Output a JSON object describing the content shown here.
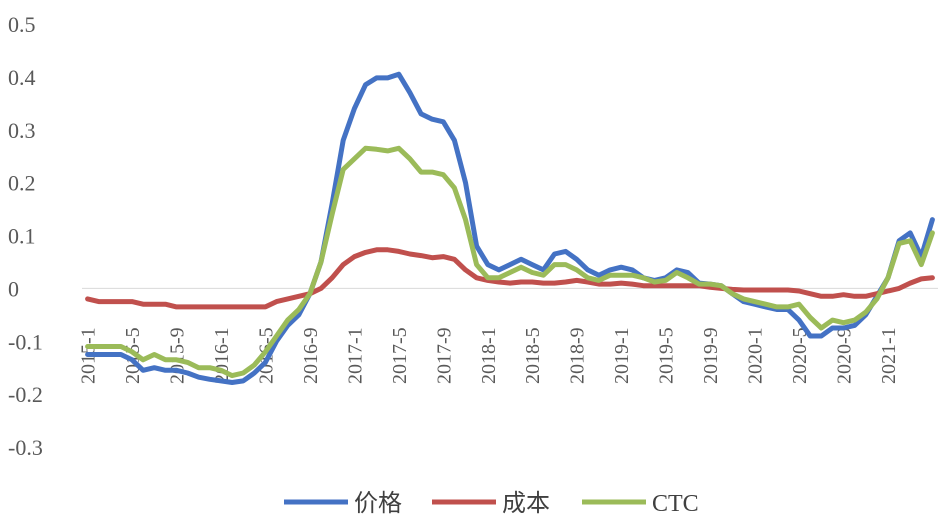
{
  "chart_data": {
    "type": "line",
    "title": "",
    "xlabel": "",
    "ylabel": "",
    "ylim": [
      -0.3,
      0.5
    ],
    "y_ticks": [
      "0.5",
      "0.4",
      "0.3",
      "0.2",
      "0.1",
      "0",
      "-0.1",
      "-0.2",
      "-0.3"
    ],
    "y_tick_values": [
      0.5,
      0.4,
      0.3,
      0.2,
      0.1,
      0,
      -0.1,
      -0.2,
      -0.3
    ],
    "grid": false,
    "legend_position": "bottom",
    "x_tick_labels": [
      "2015-1",
      "2015-5",
      "2015-9",
      "2016-1",
      "2016-5",
      "2016-9",
      "2017-1",
      "2017-5",
      "2017-9",
      "2018-1",
      "2018-5",
      "2018-9",
      "2019-1",
      "2019-5",
      "2019-9",
      "2020-1",
      "2020-5",
      "2020-9",
      "2021-1"
    ],
    "x": [
      "2015-1",
      "2015-2",
      "2015-3",
      "2015-4",
      "2015-5",
      "2015-6",
      "2015-7",
      "2015-8",
      "2015-9",
      "2015-10",
      "2015-11",
      "2015-12",
      "2016-1",
      "2016-2",
      "2016-3",
      "2016-4",
      "2016-5",
      "2016-6",
      "2016-7",
      "2016-8",
      "2016-9",
      "2016-10",
      "2016-11",
      "2016-12",
      "2017-1",
      "2017-2",
      "2017-3",
      "2017-4",
      "2017-5",
      "2017-6",
      "2017-7",
      "2017-8",
      "2017-9",
      "2017-10",
      "2017-11",
      "2017-12",
      "2018-1",
      "2018-2",
      "2018-3",
      "2018-4",
      "2018-5",
      "2018-6",
      "2018-7",
      "2018-8",
      "2018-9",
      "2018-10",
      "2018-11",
      "2018-12",
      "2019-1",
      "2019-2",
      "2019-3",
      "2019-4",
      "2019-5",
      "2019-6",
      "2019-7",
      "2019-8",
      "2019-9",
      "2019-10",
      "2019-11",
      "2019-12",
      "2020-1",
      "2020-2",
      "2020-3",
      "2020-4",
      "2020-5",
      "2020-6",
      "2020-7",
      "2020-8",
      "2020-9",
      "2020-10",
      "2020-11",
      "2020-12",
      "2021-1",
      "2021-2",
      "2021-3",
      "2021-4",
      "2021-5"
    ],
    "series": [
      {
        "name": "价格",
        "color": "#4472C4",
        "values": [
          -0.125,
          -0.125,
          -0.125,
          -0.125,
          -0.135,
          -0.155,
          -0.15,
          -0.155,
          -0.155,
          -0.16,
          -0.168,
          -0.172,
          -0.175,
          -0.178,
          -0.175,
          -0.16,
          -0.14,
          -0.1,
          -0.07,
          -0.05,
          -0.01,
          0.05,
          0.16,
          0.28,
          0.34,
          0.385,
          0.398,
          0.398,
          0.405,
          0.37,
          0.33,
          0.32,
          0.315,
          0.28,
          0.2,
          0.08,
          0.045,
          0.035,
          0.045,
          0.055,
          0.045,
          0.035,
          0.065,
          0.07,
          0.055,
          0.035,
          0.025,
          0.035,
          0.04,
          0.035,
          0.02,
          0.015,
          0.02,
          0.035,
          0.03,
          0.01,
          0.008,
          0.005,
          -0.01,
          -0.025,
          -0.03,
          -0.035,
          -0.04,
          -0.04,
          -0.06,
          -0.09,
          -0.09,
          -0.075,
          -0.075,
          -0.07,
          -0.05,
          -0.015,
          0.02,
          0.09,
          0.105,
          0.06,
          0.13
        ]
      },
      {
        "name": "成本",
        "color": "#C0504D",
        "values": [
          -0.02,
          -0.025,
          -0.025,
          -0.025,
          -0.025,
          -0.03,
          -0.03,
          -0.03,
          -0.035,
          -0.035,
          -0.035,
          -0.035,
          -0.035,
          -0.035,
          -0.035,
          -0.035,
          -0.035,
          -0.025,
          -0.02,
          -0.015,
          -0.01,
          0.0,
          0.02,
          0.045,
          0.06,
          0.068,
          0.073,
          0.073,
          0.07,
          0.065,
          0.062,
          0.058,
          0.06,
          0.055,
          0.035,
          0.02,
          0.015,
          0.012,
          0.01,
          0.012,
          0.012,
          0.01,
          0.01,
          0.012,
          0.015,
          0.012,
          0.008,
          0.008,
          0.01,
          0.008,
          0.005,
          0.005,
          0.005,
          0.005,
          0.005,
          0.005,
          0.002,
          0.0,
          -0.002,
          -0.003,
          -0.003,
          -0.003,
          -0.003,
          -0.003,
          -0.005,
          -0.01,
          -0.015,
          -0.015,
          -0.012,
          -0.015,
          -0.015,
          -0.01,
          -0.005,
          0.0,
          0.01,
          0.018,
          0.02
        ]
      },
      {
        "name": "CTC",
        "color": "#9BBB59",
        "values": [
          -0.11,
          -0.11,
          -0.11,
          -0.11,
          -0.12,
          -0.135,
          -0.125,
          -0.135,
          -0.135,
          -0.14,
          -0.15,
          -0.15,
          -0.155,
          -0.165,
          -0.16,
          -0.145,
          -0.12,
          -0.09,
          -0.06,
          -0.04,
          -0.01,
          0.05,
          0.14,
          0.225,
          0.245,
          0.265,
          0.263,
          0.26,
          0.265,
          0.245,
          0.22,
          0.22,
          0.215,
          0.19,
          0.13,
          0.045,
          0.02,
          0.02,
          0.03,
          0.04,
          0.03,
          0.025,
          0.045,
          0.045,
          0.035,
          0.02,
          0.015,
          0.025,
          0.025,
          0.025,
          0.02,
          0.012,
          0.015,
          0.03,
          0.02,
          0.008,
          0.008,
          0.005,
          -0.01,
          -0.02,
          -0.025,
          -0.03,
          -0.035,
          -0.035,
          -0.03,
          -0.055,
          -0.075,
          -0.06,
          -0.065,
          -0.06,
          -0.045,
          -0.02,
          0.02,
          0.085,
          0.09,
          0.045,
          0.105
        ]
      }
    ]
  }
}
